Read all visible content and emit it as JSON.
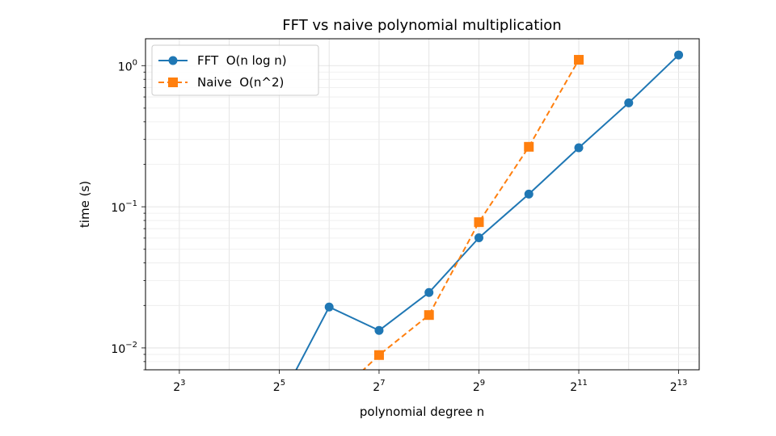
{
  "chart_data": {
    "type": "line",
    "title": "FFT vs naive polynomial multiplication",
    "xlabel": "polynomial degree n",
    "ylabel": "time (s)",
    "x_scale": "log2",
    "y_scale": "log10",
    "xlim": [
      5.0,
      10900
    ],
    "ylim": [
      0.007,
      1.55
    ],
    "grid": true,
    "legend_position": "top-left",
    "x_ticks": [
      {
        "value": 8,
        "base": "2",
        "exp": "3"
      },
      {
        "value": 32,
        "base": "2",
        "exp": "5"
      },
      {
        "value": 128,
        "base": "2",
        "exp": "7"
      },
      {
        "value": 512,
        "base": "2",
        "exp": "9"
      },
      {
        "value": 2048,
        "base": "2",
        "exp": "11"
      },
      {
        "value": 8192,
        "base": "2",
        "exp": "13"
      }
    ],
    "y_ticks": [
      {
        "value": 1,
        "base": "10",
        "exp": "0"
      },
      {
        "value": 0.1,
        "base": "10",
        "exp": "−1"
      },
      {
        "value": 0.01,
        "base": "10",
        "exp": "−2"
      }
    ],
    "series": [
      {
        "name": "FFT  O(n log n)",
        "color": "#1f77b4",
        "marker": "circle",
        "linestyle": "solid",
        "x": [
          32,
          64,
          128,
          256,
          512,
          1024,
          2048,
          4096,
          8192
        ],
        "y": [
          0.0,
          0.0195,
          0.0133,
          0.0247,
          0.0603,
          0.123,
          0.262,
          0.545,
          1.19
        ]
      },
      {
        "name": "Naive  O(n^2)",
        "color": "#ff7f0e",
        "marker": "square",
        "linestyle": "dashed",
        "x": [
          64,
          128,
          256,
          512,
          1024,
          2048
        ],
        "y": [
          0.0,
          0.0089,
          0.0171,
          0.0778,
          0.266,
          1.1
        ]
      }
    ]
  }
}
